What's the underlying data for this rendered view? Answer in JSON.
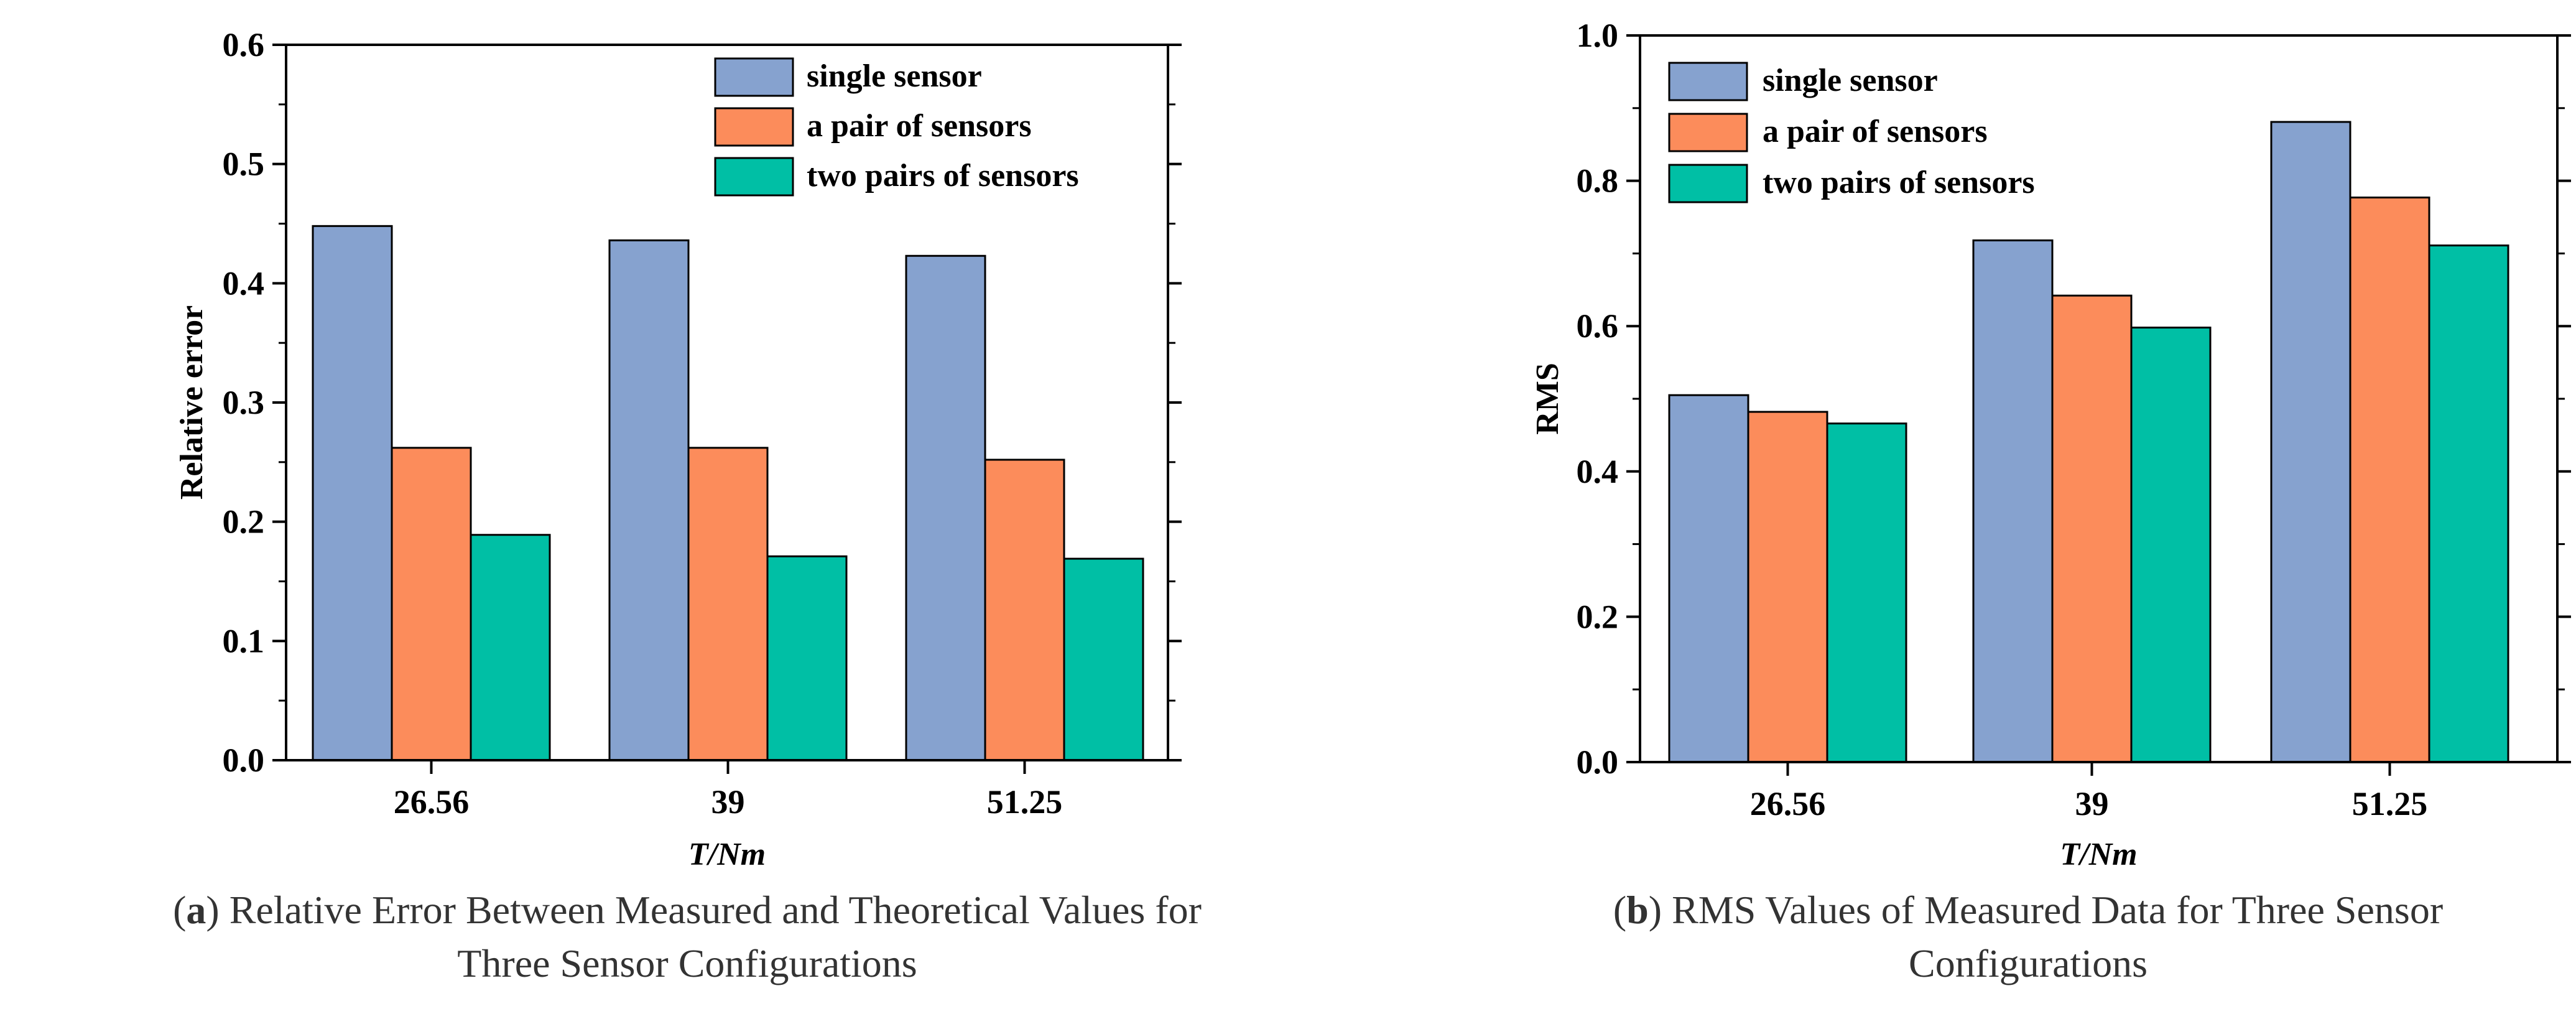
{
  "colors": {
    "single": "#86A2CF",
    "pair": "#FC8C5B",
    "two": "#00BFA5"
  },
  "chart_data": [
    {
      "type": "bar",
      "categories": [
        "26.56",
        "39",
        "51.25"
      ],
      "xlabel": "T/Nm",
      "ylabel": "Relative error",
      "ylim": [
        0,
        0.6
      ],
      "yticks": [
        "0.0",
        "0.1",
        "0.2",
        "0.3",
        "0.4",
        "0.5",
        "0.6"
      ],
      "legend_position": "top-right",
      "grid": false,
      "series": [
        {
          "name": "single sensor",
          "values": [
            0.448,
            0.436,
            0.423
          ]
        },
        {
          "name": "a pair of sensors",
          "values": [
            0.262,
            0.262,
            0.252
          ]
        },
        {
          "name": "two pairs of sensors",
          "values": [
            0.189,
            0.171,
            0.169
          ]
        }
      ]
    },
    {
      "type": "bar",
      "categories": [
        "26.56",
        "39",
        "51.25"
      ],
      "xlabel": "T/Nm",
      "ylabel": "RMS",
      "ylim": [
        0,
        1.0
      ],
      "yticks": [
        "0.0",
        "0.2",
        "0.4",
        "0.6",
        "0.8",
        "1.0"
      ],
      "legend_position": "top-left",
      "grid": false,
      "series": [
        {
          "name": "single sensor",
          "values": [
            0.505,
            0.718,
            0.881
          ]
        },
        {
          "name": "a pair of sensors",
          "values": [
            0.482,
            0.642,
            0.777
          ]
        },
        {
          "name": "two pairs of sensors",
          "values": [
            0.466,
            0.598,
            0.711
          ]
        }
      ]
    }
  ],
  "captions": {
    "a_label": "a",
    "a_line1": " Relative Error Between Measured and Theoretical Values for",
    "a_line2": "Three Sensor Configurations",
    "b_label": "b",
    "b_line1": " RMS Values of Measured Data for Three Sensor",
    "b_line2": "Configurations"
  }
}
